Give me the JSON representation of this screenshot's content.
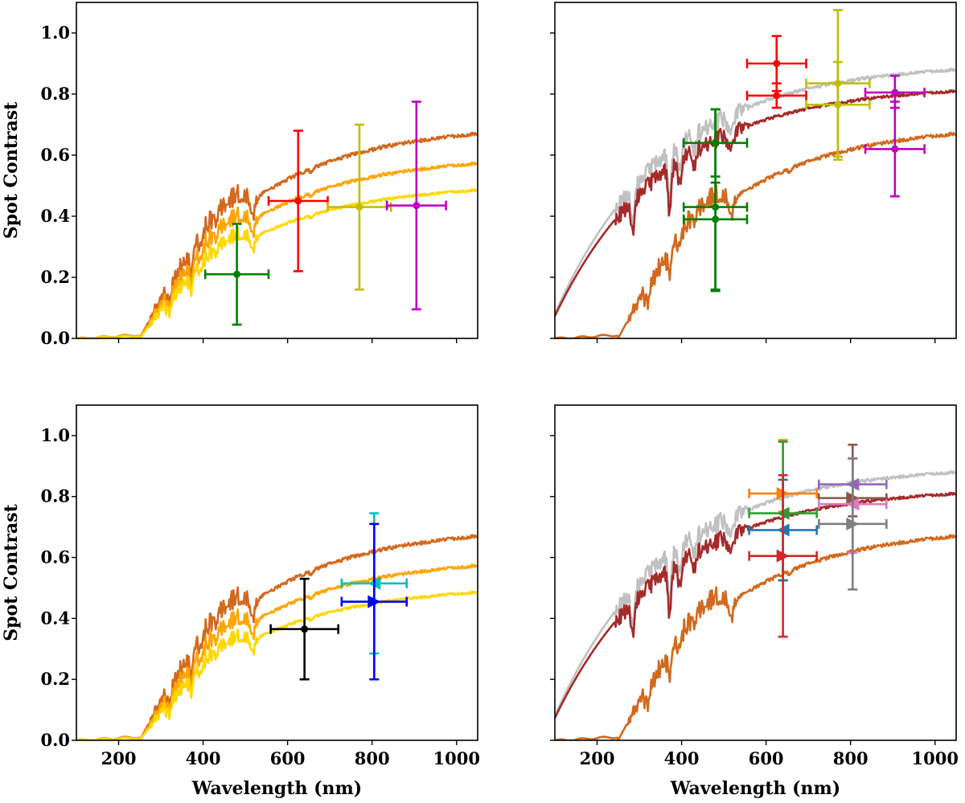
{
  "figure": {
    "layout": "2x2 grid"
  },
  "colors": {
    "curve_dark_orange": "#d2691e",
    "curve_orange": "#ffa500",
    "curve_gold": "#ffd700",
    "curve_silver": "#c0c0c0",
    "curve_brown": "#a52a2a",
    "err_red": "#ff0000",
    "err_green": "#008000",
    "err_olive": "#bfbf00",
    "err_magenta": "#bf00bf",
    "err_black": "#000000",
    "err_cyan": "#00bfbf",
    "err_blue": "#0000ff",
    "tab_orange": "#ff7f0e",
    "tab_green": "#2ca02c",
    "tab_blue": "#1f77b4",
    "tab_red": "#d62728",
    "tab_purple": "#9467bd",
    "tab_brown": "#8c564b",
    "tab_pink": "#e377c2",
    "tab_gray": "#7f7f7f"
  },
  "axis_labels": {
    "y": "Spot Contrast",
    "x": "Wavelength (nm)"
  },
  "chart_data": [
    {
      "type": "line",
      "panel": "top-left",
      "xlim": [
        100,
        1050
      ],
      "ylim": [
        0,
        1.1
      ],
      "xticks": [
        200,
        400,
        600,
        800,
        1000
      ],
      "yticks": [
        0.0,
        0.2,
        0.4,
        0.6,
        0.8,
        1.0
      ],
      "ytick_labels": [
        "0.0",
        "0.2",
        "0.4",
        "0.6",
        "0.8",
        "1.0"
      ],
      "show_xtick_labels": false,
      "show_ytick_labels": true,
      "xlabel": "",
      "ylabel": "Spot Contrast",
      "curves": [
        {
          "color": "#d2691e",
          "family": "A",
          "scale": 1.0
        },
        {
          "color": "#ffa500",
          "family": "A",
          "scale": 0.855
        },
        {
          "color": "#ffd700",
          "family": "A",
          "scale": 0.725
        }
      ],
      "points": [
        {
          "x": 480,
          "y": 0.21,
          "xerr": 75,
          "yerr_lo": 0.165,
          "yerr_hi": 0.165,
          "color": "#008000",
          "marker": "circle"
        },
        {
          "x": 625,
          "y": 0.45,
          "xerr": 70,
          "yerr_lo": 0.23,
          "yerr_hi": 0.23,
          "color": "#ff0000",
          "marker": "circle"
        },
        {
          "x": 770,
          "y": 0.43,
          "xerr": 75,
          "yerr_lo": 0.27,
          "yerr_hi": 0.27,
          "color": "#bfbf00",
          "marker": "circle"
        },
        {
          "x": 905,
          "y": 0.435,
          "xerr": 70,
          "yerr_lo": 0.34,
          "yerr_hi": 0.34,
          "color": "#bf00bf",
          "marker": "circle"
        }
      ]
    },
    {
      "type": "line",
      "panel": "top-right",
      "xlim": [
        100,
        1050
      ],
      "ylim": [
        0,
        1.1
      ],
      "xticks": [
        200,
        400,
        600,
        800,
        1000
      ],
      "yticks": [
        0.0,
        0.2,
        0.4,
        0.6,
        0.8,
        1.0
      ],
      "ytick_labels": [
        "0.0",
        "0.2",
        "0.4",
        "0.6",
        "0.8",
        "1.0"
      ],
      "show_xtick_labels": false,
      "show_ytick_labels": false,
      "xlabel": "",
      "ylabel": "",
      "curves": [
        {
          "color": "#c0c0c0",
          "family": "B",
          "scale": 1.0
        },
        {
          "color": "#a52a2a",
          "family": "B",
          "scale": 0.92
        },
        {
          "color": "#d2691e",
          "family": "A",
          "scale": 1.0
        }
      ],
      "points": [
        {
          "x": 625,
          "y": 0.9,
          "xerr": 70,
          "yerr_lo": 0.09,
          "yerr_hi": 0.09,
          "color": "#ff0000",
          "marker": "circle"
        },
        {
          "x": 625,
          "y": 0.795,
          "xerr": 70,
          "yerr_lo": 0.04,
          "yerr_hi": 0.04,
          "color": "#ff0000",
          "marker": "circle"
        },
        {
          "x": 770,
          "y": 0.835,
          "xerr": 75,
          "yerr_lo": 0.24,
          "yerr_hi": 0.24,
          "color": "#bfbf00",
          "marker": "circle"
        },
        {
          "x": 770,
          "y": 0.765,
          "xerr": 75,
          "yerr_lo": 0.18,
          "yerr_hi": 0.14,
          "color": "#bfbf00",
          "marker": "circle"
        },
        {
          "x": 905,
          "y": 0.805,
          "xerr": 70,
          "yerr_lo": 0.05,
          "yerr_hi": 0.055,
          "color": "#bf00bf",
          "marker": "circle"
        },
        {
          "x": 905,
          "y": 0.62,
          "xerr": 70,
          "yerr_lo": 0.155,
          "yerr_hi": 0.155,
          "color": "#bf00bf",
          "marker": "circle"
        },
        {
          "x": 480,
          "y": 0.64,
          "xerr": 75,
          "yerr_lo": 0.11,
          "yerr_hi": 0.11,
          "color": "#008000",
          "marker": "circle"
        },
        {
          "x": 480,
          "y": 0.43,
          "xerr": 75,
          "yerr_lo": 0.27,
          "yerr_hi": 0.32,
          "color": "#008000",
          "marker": "circle"
        },
        {
          "x": 480,
          "y": 0.39,
          "xerr": 75,
          "yerr_lo": 0.235,
          "yerr_hi": 0.12,
          "color": "#008000",
          "marker": "circle"
        }
      ]
    },
    {
      "type": "line",
      "panel": "bottom-left",
      "xlim": [
        100,
        1050
      ],
      "ylim": [
        0,
        1.1
      ],
      "xticks": [
        200,
        400,
        600,
        800,
        1000
      ],
      "xtick_labels": [
        "200",
        "400",
        "600",
        "800",
        "1000"
      ],
      "yticks": [
        0.0,
        0.2,
        0.4,
        0.6,
        0.8,
        1.0
      ],
      "ytick_labels": [
        "0.0",
        "0.2",
        "0.4",
        "0.6",
        "0.8",
        "1.0"
      ],
      "show_xtick_labels": true,
      "show_ytick_labels": true,
      "xlabel": "Wavelength (nm)",
      "ylabel": "Spot Contrast",
      "curves": [
        {
          "color": "#d2691e",
          "family": "A",
          "scale": 1.0
        },
        {
          "color": "#ffa500",
          "family": "A",
          "scale": 0.855
        },
        {
          "color": "#ffd700",
          "family": "A",
          "scale": 0.725
        }
      ],
      "points": [
        {
          "x": 640,
          "y": 0.365,
          "xerr": 80,
          "yerr_lo": 0.165,
          "yerr_hi": 0.165,
          "color": "#000000",
          "marker": "circle"
        },
        {
          "x": 805,
          "y": 0.515,
          "xerr": 77,
          "yerr_lo": 0.23,
          "yerr_hi": 0.23,
          "color": "#00bfbf",
          "marker": "triangle-left"
        },
        {
          "x": 805,
          "y": 0.455,
          "xerr": 77,
          "yerr_lo": 0.255,
          "yerr_hi": 0.255,
          "color": "#0000ff",
          "marker": "triangle-right"
        }
      ]
    },
    {
      "type": "line",
      "panel": "bottom-right",
      "xlim": [
        100,
        1050
      ],
      "ylim": [
        0,
        1.1
      ],
      "xticks": [
        200,
        400,
        600,
        800,
        1000
      ],
      "xtick_labels": [
        "200",
        "400",
        "600",
        "800",
        "1000"
      ],
      "yticks": [
        0.0,
        0.2,
        0.4,
        0.6,
        0.8,
        1.0
      ],
      "ytick_labels": [
        "0.0",
        "0.2",
        "0.4",
        "0.6",
        "0.8",
        "1.0"
      ],
      "show_xtick_labels": true,
      "show_ytick_labels": false,
      "xlabel": "Wavelength (nm)",
      "ylabel": "",
      "curves": [
        {
          "color": "#c0c0c0",
          "family": "B",
          "scale": 1.0
        },
        {
          "color": "#a52a2a",
          "family": "B",
          "scale": 0.92
        },
        {
          "color": "#d2691e",
          "family": "A",
          "scale": 1.0
        }
      ],
      "points": [
        {
          "x": 640,
          "y": 0.81,
          "xerr": 80,
          "yerr_lo": 0.06,
          "yerr_hi": 0.175,
          "color": "#ff7f0e",
          "marker": "triangle-right"
        },
        {
          "x": 640,
          "y": 0.745,
          "xerr": 80,
          "yerr_lo": 0.22,
          "yerr_hi": 0.235,
          "color": "#2ca02c",
          "marker": "triangle-left"
        },
        {
          "x": 640,
          "y": 0.69,
          "xerr": 80,
          "yerr_lo": 0.165,
          "yerr_hi": 0.165,
          "color": "#1f77b4",
          "marker": "triangle-left"
        },
        {
          "x": 640,
          "y": 0.605,
          "xerr": 80,
          "yerr_lo": 0.265,
          "yerr_hi": 0.265,
          "color": "#d62728",
          "marker": "triangle-right"
        },
        {
          "x": 805,
          "y": 0.84,
          "xerr": 80,
          "yerr_lo": 0.06,
          "yerr_hi": 0.085,
          "color": "#9467bd",
          "marker": "triangle-left"
        },
        {
          "x": 805,
          "y": 0.795,
          "xerr": 80,
          "yerr_lo": 0.06,
          "yerr_hi": 0.175,
          "color": "#8c564b",
          "marker": "triangle-right"
        },
        {
          "x": 805,
          "y": 0.775,
          "xerr": 80,
          "yerr_lo": 0.16,
          "yerr_hi": 0.15,
          "color": "#e377c2",
          "marker": "triangle-left"
        },
        {
          "x": 805,
          "y": 0.71,
          "xerr": 80,
          "yerr_lo": 0.215,
          "yerr_hi": 0.215,
          "color": "#7f7f7f",
          "marker": "triangle-right"
        }
      ]
    }
  ]
}
